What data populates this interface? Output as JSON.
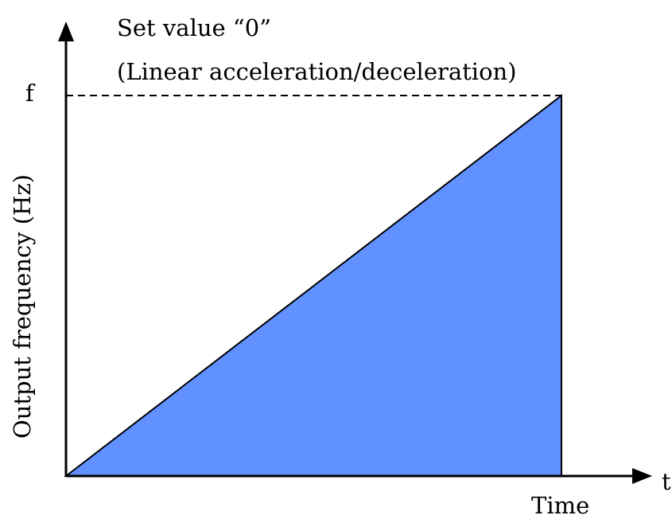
{
  "title": {
    "line1": "Set value “0”",
    "line2": "(Linear acceleration/deceleration)"
  },
  "y_axis": {
    "label": "Output frequency (Hz)",
    "marker": "f"
  },
  "x_axis": {
    "label": "Time",
    "marker": "t"
  }
}
